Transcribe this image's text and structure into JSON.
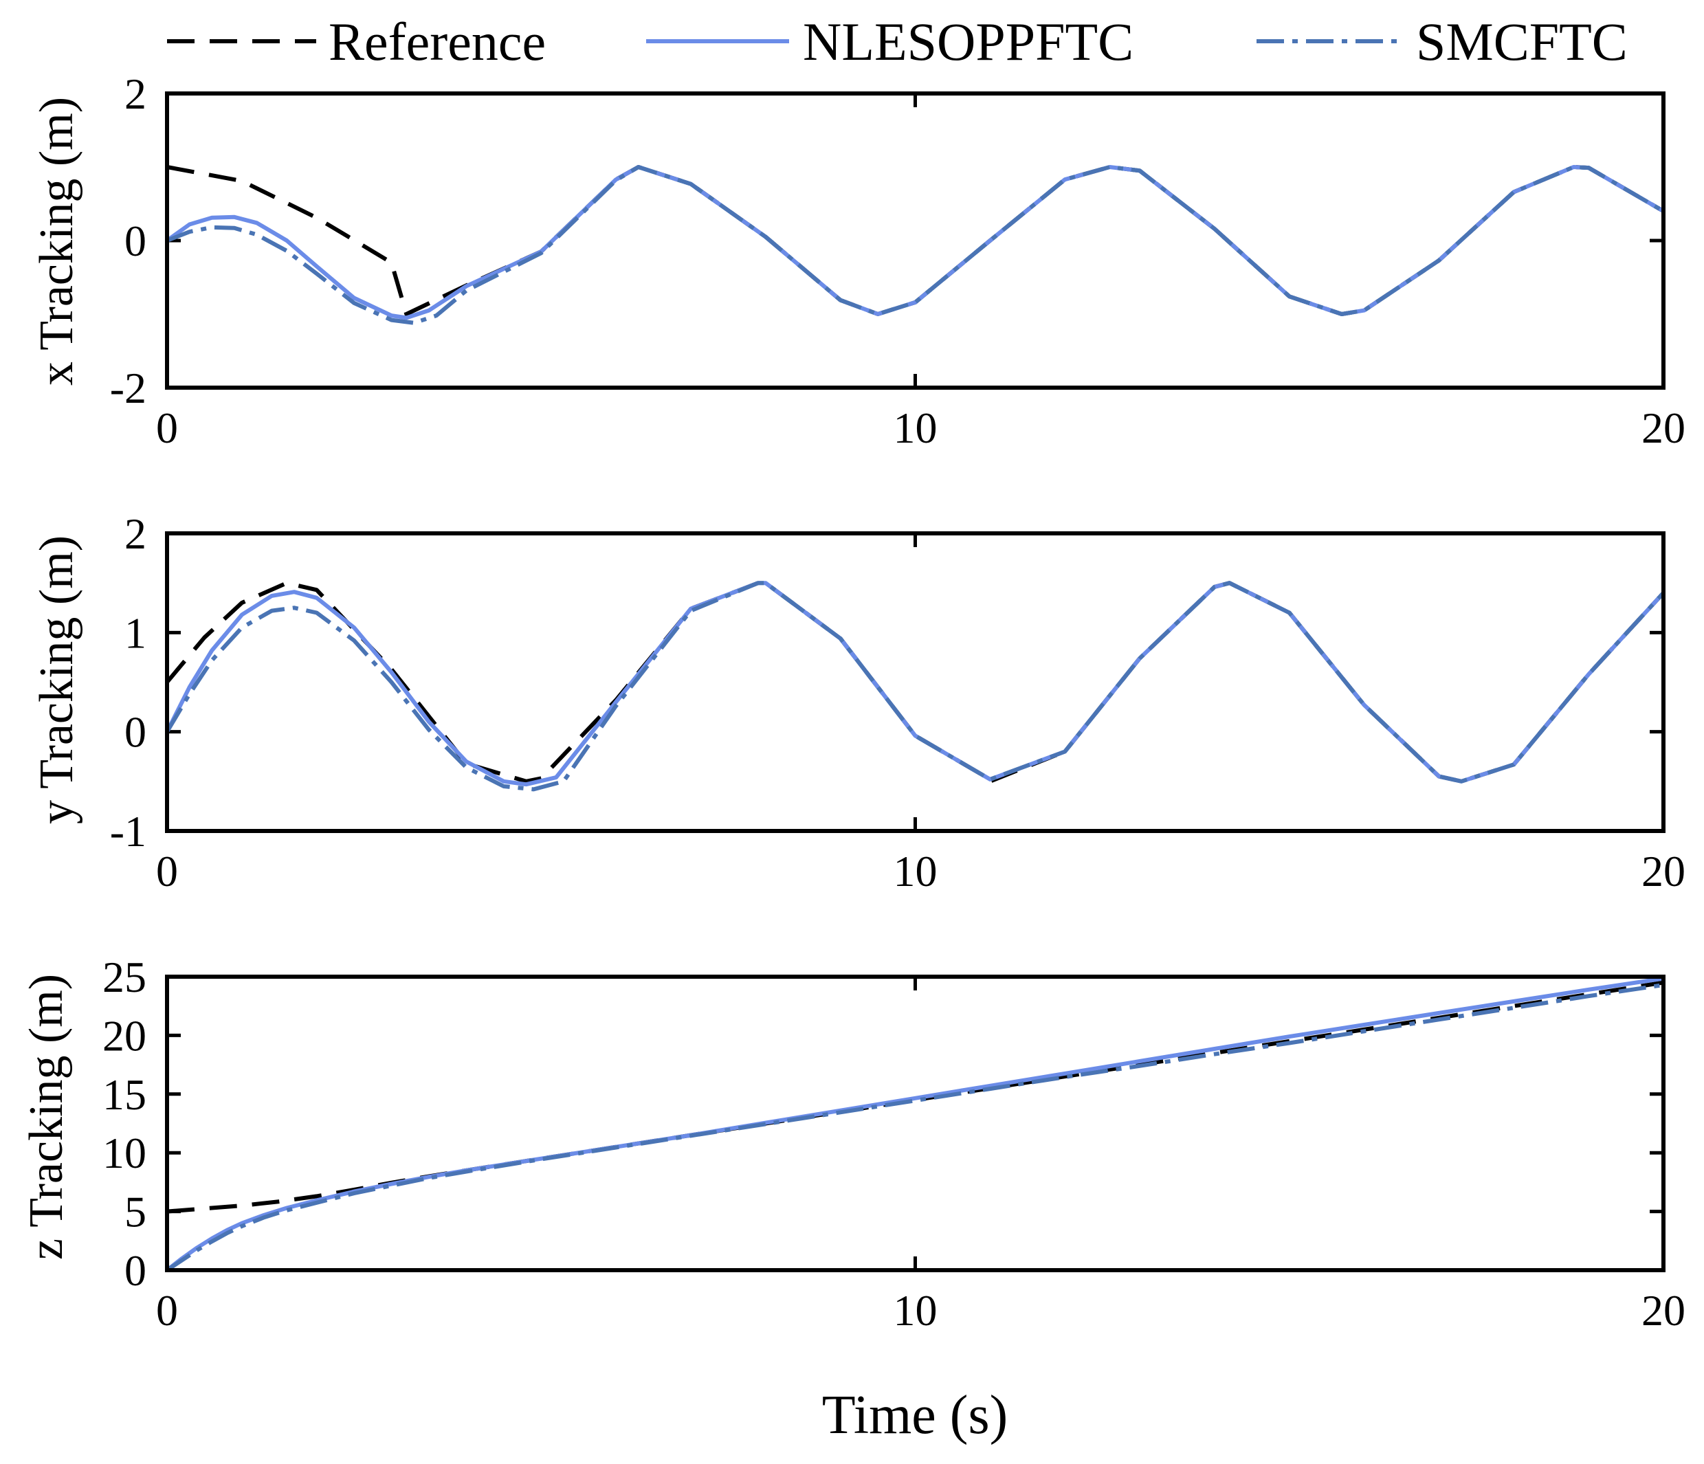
{
  "legend": [
    {
      "key": "reference",
      "label": "Reference",
      "color": "#000000",
      "dash": "dashed"
    },
    {
      "key": "nleso",
      "label": "NLESOPPFTC",
      "color": "#6b8ce8",
      "dash": "solid"
    },
    {
      "key": "smc",
      "label": "SMCFTC",
      "color": "#4a74b4",
      "dash": "dashdot"
    }
  ],
  "x_axis_title": "Time (s)",
  "chart_data": [
    {
      "type": "line",
      "ylabel": "x Tracking (m)",
      "xlim": [
        0,
        20
      ],
      "ylim": [
        -2,
        2
      ],
      "xticks": [
        0,
        10,
        20
      ],
      "yticks": [
        -2,
        0,
        2
      ],
      "grid": false,
      "series": [
        {
          "name": "Reference",
          "x": [
            0,
            1,
            2,
            3,
            3.2,
            4,
            5,
            6,
            6.3,
            7,
            8,
            9,
            9.5,
            10,
            11,
            12,
            12.6,
            13,
            14,
            15,
            15.7,
            16,
            17,
            18,
            18.8,
            19,
            20
          ],
          "y": [
            1.0,
            0.81,
            0.31,
            -0.3,
            -1.0,
            -0.61,
            -0.15,
            0.83,
            1.0,
            0.77,
            0.05,
            -0.81,
            -1.0,
            -0.84,
            0.0,
            0.83,
            1.0,
            0.95,
            0.16,
            -0.76,
            -1.0,
            -0.95,
            -0.27,
            0.66,
            1.0,
            0.99,
            0.4
          ]
        },
        {
          "name": "NLESOPPFTC",
          "x": [
            0,
            0.3,
            0.6,
            0.9,
            1.2,
            1.6,
            2,
            2.5,
            3,
            3.2,
            3.5,
            4,
            5,
            6,
            6.3,
            7,
            8,
            9,
            9.5,
            10,
            11,
            12,
            12.6,
            13,
            14,
            15,
            15.7,
            16,
            17,
            18,
            18.8,
            19,
            20
          ],
          "y": [
            0.0,
            0.22,
            0.31,
            0.32,
            0.24,
            0.0,
            -0.35,
            -0.78,
            -1.02,
            -1.05,
            -0.95,
            -0.62,
            -0.15,
            0.83,
            1.0,
            0.77,
            0.05,
            -0.81,
            -1.0,
            -0.84,
            0.0,
            0.83,
            1.0,
            0.95,
            0.16,
            -0.76,
            -1.0,
            -0.95,
            -0.27,
            0.66,
            1.0,
            0.99,
            0.4
          ]
        },
        {
          "name": "SMCFTC",
          "x": [
            0,
            0.3,
            0.6,
            0.9,
            1.2,
            1.6,
            2,
            2.5,
            3,
            3.3,
            3.6,
            4,
            5,
            6,
            6.3,
            7,
            8,
            9,
            9.5,
            10,
            11,
            12,
            12.6,
            13,
            14,
            15,
            15.7,
            16,
            17,
            18,
            18.8,
            19,
            20
          ],
          "y": [
            0.0,
            0.12,
            0.18,
            0.17,
            0.08,
            -0.14,
            -0.45,
            -0.85,
            -1.08,
            -1.12,
            -1.02,
            -0.68,
            -0.17,
            0.82,
            1.0,
            0.77,
            0.05,
            -0.81,
            -1.0,
            -0.84,
            0.0,
            0.83,
            1.0,
            0.95,
            0.16,
            -0.76,
            -1.0,
            -0.95,
            -0.27,
            0.66,
            1.0,
            0.99,
            0.4
          ]
        }
      ]
    },
    {
      "type": "line",
      "ylabel": "y Tracking (m)",
      "xlim": [
        0,
        20
      ],
      "ylim": [
        -1,
        2
      ],
      "xticks": [
        0,
        10,
        20
      ],
      "yticks": [
        -1,
        0,
        1,
        2
      ],
      "grid": false,
      "series": [
        {
          "name": "Reference",
          "x": [
            0,
            0.5,
            1,
            1.6,
            2,
            3,
            4,
            4.8,
            5,
            6,
            7,
            7.9,
            8,
            9,
            10,
            11,
            11.0,
            12,
            13,
            14,
            14.2,
            15,
            16,
            17,
            17.3,
            18,
            19,
            20
          ],
          "y": [
            0.5,
            0.95,
            1.3,
            1.5,
            1.43,
            0.63,
            -0.32,
            -0.5,
            -0.47,
            0.32,
            1.24,
            1.5,
            1.5,
            0.94,
            -0.04,
            -0.48,
            -0.5,
            -0.2,
            0.74,
            1.46,
            1.5,
            1.2,
            0.27,
            -0.45,
            -0.5,
            -0.33,
            0.58,
            1.4
          ]
        },
        {
          "name": "NLESOPPFTC",
          "x": [
            0,
            0.3,
            0.6,
            1,
            1.4,
            1.7,
            2,
            2.5,
            3,
            3.5,
            4,
            4.5,
            4.8,
            5.2,
            6,
            7,
            7.9,
            8,
            9,
            10,
            11,
            12,
            13,
            14,
            14.2,
            15,
            16,
            17,
            17.3,
            18,
            19,
            20
          ],
          "y": [
            0.0,
            0.45,
            0.82,
            1.18,
            1.37,
            1.41,
            1.35,
            1.05,
            0.6,
            0.1,
            -0.3,
            -0.5,
            -0.53,
            -0.46,
            0.3,
            1.24,
            1.5,
            1.5,
            0.94,
            -0.04,
            -0.48,
            -0.2,
            0.74,
            1.46,
            1.5,
            1.2,
            0.27,
            -0.45,
            -0.5,
            -0.33,
            0.58,
            1.4
          ]
        },
        {
          "name": "SMCFTC",
          "x": [
            0,
            0.3,
            0.6,
            1,
            1.4,
            1.7,
            2,
            2.5,
            3,
            3.5,
            4,
            4.5,
            4.9,
            5.3,
            6,
            7,
            7.9,
            8,
            9,
            10,
            11,
            12,
            13,
            14,
            14.2,
            15,
            16,
            17,
            17.3,
            18,
            19,
            20
          ],
          "y": [
            0.0,
            0.38,
            0.72,
            1.05,
            1.22,
            1.25,
            1.2,
            0.92,
            0.5,
            0.02,
            -0.36,
            -0.55,
            -0.58,
            -0.5,
            0.26,
            1.22,
            1.5,
            1.5,
            0.94,
            -0.04,
            -0.48,
            -0.2,
            0.74,
            1.46,
            1.5,
            1.2,
            0.27,
            -0.45,
            -0.5,
            -0.33,
            0.58,
            1.4
          ]
        }
      ]
    },
    {
      "type": "line",
      "ylabel": "z Tracking (m)",
      "xlim": [
        0,
        20
      ],
      "ylim": [
        0,
        25
      ],
      "xticks": [
        0,
        10,
        20
      ],
      "yticks": [
        0,
        5,
        10,
        15,
        20,
        25
      ],
      "grid": false,
      "series": [
        {
          "name": "Reference",
          "x": [
            0,
            0.5,
            1,
            1.5,
            2,
            2.5,
            3,
            3.5,
            4,
            5,
            6,
            7,
            8,
            9,
            10,
            11,
            12,
            13,
            14,
            15,
            16,
            17,
            18,
            19,
            20
          ],
          "y": [
            5.0,
            5.25,
            5.5,
            5.85,
            6.3,
            6.85,
            7.45,
            8.0,
            8.5,
            9.5,
            10.5,
            11.5,
            12.5,
            13.5,
            14.5,
            15.5,
            16.5,
            17.5,
            18.5,
            19.5,
            20.5,
            21.5,
            22.5,
            23.5,
            24.5
          ]
        },
        {
          "name": "NLESOPPFTC",
          "x": [
            0,
            0.2,
            0.4,
            0.6,
            0.8,
            1,
            1.3,
            1.6,
            2,
            2.5,
            3,
            3.5,
            4,
            5,
            6,
            7,
            8,
            9,
            10,
            11,
            12,
            13,
            14,
            15,
            16,
            17,
            18,
            19,
            20
          ],
          "y": [
            0.0,
            1.0,
            1.9,
            2.7,
            3.4,
            4.0,
            4.7,
            5.3,
            5.95,
            6.7,
            7.35,
            7.95,
            8.5,
            9.5,
            10.5,
            11.5,
            12.55,
            13.6,
            14.65,
            15.7,
            16.75,
            17.8,
            18.85,
            19.9,
            20.9,
            21.9,
            22.9,
            23.9,
            24.85
          ]
        },
        {
          "name": "SMCFTC",
          "x": [
            0,
            0.2,
            0.4,
            0.6,
            0.8,
            1,
            1.3,
            1.6,
            2,
            2.5,
            3,
            3.5,
            4,
            5,
            6,
            7,
            8,
            9,
            10,
            11,
            12,
            13,
            14,
            15,
            16,
            17,
            18,
            19,
            20
          ],
          "y": [
            0.0,
            0.85,
            1.7,
            2.45,
            3.15,
            3.75,
            4.5,
            5.1,
            5.75,
            6.55,
            7.2,
            7.85,
            8.4,
            9.45,
            10.45,
            11.45,
            12.45,
            13.45,
            14.45,
            15.45,
            16.45,
            17.4,
            18.4,
            19.35,
            20.35,
            21.35,
            22.35,
            23.35,
            24.3
          ]
        }
      ]
    }
  ]
}
